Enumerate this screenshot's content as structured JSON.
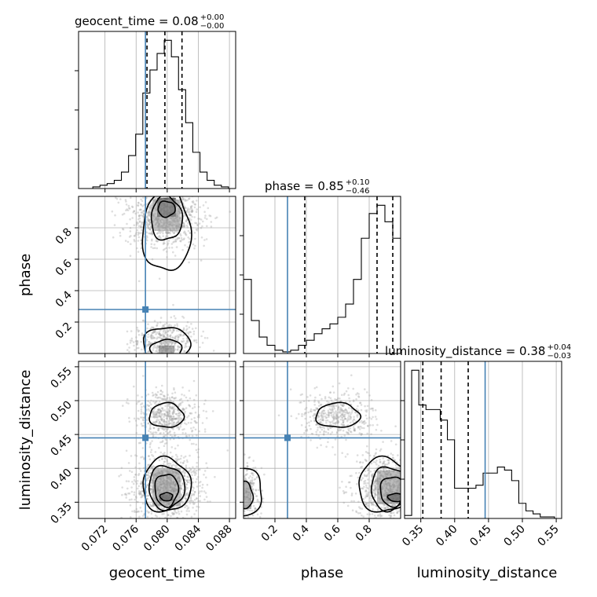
{
  "chart_data": {
    "type": "corner",
    "parameters": [
      "geocent_time",
      "phase",
      "luminosity_distance"
    ],
    "truths": {
      "geocent_time": 0.0772,
      "phase": 0.28,
      "luminosity_distance": 0.445
    },
    "truth_color": "#4682b4",
    "titles": [
      {
        "param": "geocent_time",
        "text": "geocent_time = 0.08",
        "upper": "+0.00",
        "lower": "−0.00"
      },
      {
        "param": "phase",
        "text": "phase = 0.85",
        "upper": "+0.10",
        "lower": "−0.46"
      },
      {
        "param": "luminosity_distance",
        "text": "luminosity_distance = 0.38",
        "upper": "+0.04",
        "lower": "−0.03"
      }
    ],
    "ticks": {
      "geocent_time": {
        "range": [
          0.0686,
          0.0888
        ],
        "values": [
          0.072,
          0.076,
          0.08,
          0.084,
          0.088
        ],
        "labels": [
          "0.072",
          "0.076",
          "0.080",
          "0.084",
          "0.088"
        ]
      },
      "phase": {
        "range": [
          0.0,
          1.0
        ],
        "values": [
          0.2,
          0.4,
          0.6,
          0.8
        ],
        "labels": [
          "0.2",
          "0.4",
          "0.6",
          "0.8"
        ]
      },
      "luminosity_distance": {
        "range": [
          0.326,
          0.558
        ],
        "values": [
          0.35,
          0.4,
          0.45,
          0.5,
          0.55
        ],
        "labels": [
          "0.35",
          "0.40",
          "0.45",
          "0.50",
          "0.55"
        ]
      }
    },
    "quantiles": {
      "geocent_time": [
        0.0774,
        0.0797,
        0.0819
      ],
      "phase": [
        0.39,
        0.85,
        0.95
      ],
      "luminosity_distance": [
        0.353,
        0.38,
        0.42
      ]
    },
    "histograms": {
      "geocent_time": [
        0,
        0,
        1,
        2,
        3,
        5,
        10,
        20,
        33,
        58,
        72,
        82,
        90,
        80,
        60,
        40,
        22,
        10,
        5,
        2,
        1,
        0
      ],
      "phase": [
        45,
        20,
        10,
        5,
        2,
        1,
        2,
        5,
        8,
        12,
        15,
        18,
        22,
        30,
        45,
        70,
        85,
        90,
        80,
        70
      ],
      "luminosity_distance": [
        2,
        98,
        75,
        72,
        72,
        65,
        52,
        20,
        20,
        20,
        22,
        30,
        30,
        34,
        32,
        25,
        10,
        5,
        3,
        1,
        1,
        0
      ]
    },
    "grid": true,
    "xlabels": [
      "geocent_time",
      "phase",
      "luminosity_distance"
    ],
    "ylabels": [
      "phase",
      "luminosity_distance"
    ]
  }
}
